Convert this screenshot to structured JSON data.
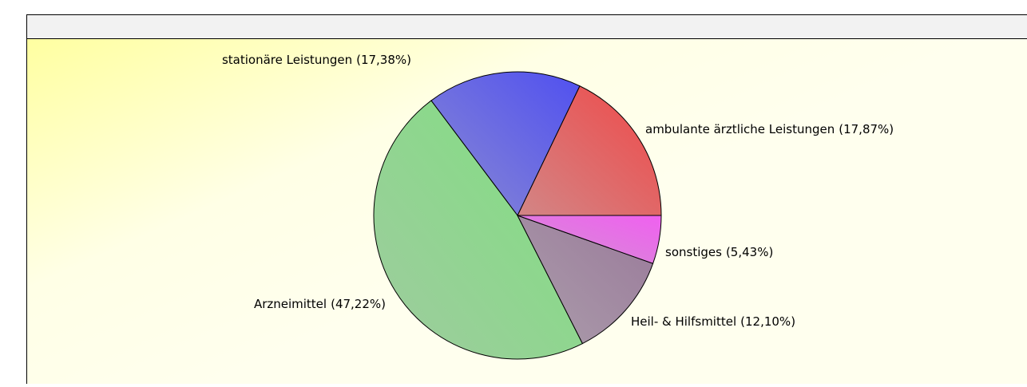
{
  "chart_data": {
    "type": "pie",
    "categories": [
      "ambulante ärztliche Leistungen",
      "stationäre Leistungen",
      "Arzneimittel",
      "Heil- & Hilfsmittel",
      "sonstiges"
    ],
    "values": [
      17.87,
      17.38,
      47.22,
      12.1,
      5.43
    ],
    "value_labels": [
      "(17,87%)",
      "(17,38%)",
      "(47,22%)",
      "(12,10%)",
      "(5,43%)"
    ],
    "colors": [
      "#f04848",
      "#5050f0",
      "#80e080",
      "#9a7a9a",
      "#f060f0"
    ]
  }
}
